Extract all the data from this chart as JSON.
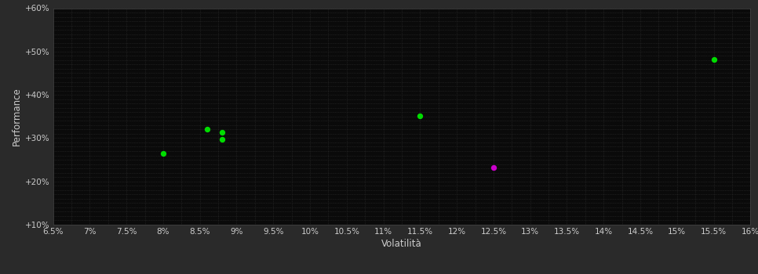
{
  "background_color": "#2a2a2a",
  "plot_bg_color": "#0a0a0a",
  "grid_color": "#3a3a3a",
  "text_color": "#cccccc",
  "xlabel": "Volatilità",
  "ylabel": "Performance",
  "xlim": [
    0.065,
    0.16
  ],
  "ylim": [
    0.1,
    0.6
  ],
  "xticks": [
    0.065,
    0.07,
    0.075,
    0.08,
    0.085,
    0.09,
    0.095,
    0.1,
    0.105,
    0.11,
    0.115,
    0.12,
    0.125,
    0.13,
    0.135,
    0.14,
    0.145,
    0.15,
    0.155,
    0.16
  ],
  "xtick_labels": [
    "6.5%",
    "7%",
    "7.5%",
    "8%",
    "8.5%",
    "9%",
    "9.5%",
    "10%",
    "10.5%",
    "11%",
    "11.5%",
    "12%",
    "12.5%",
    "13%",
    "13.5%",
    "14%",
    "14.5%",
    "15%",
    "15.5%",
    "16%"
  ],
  "yticks": [
    0.1,
    0.2,
    0.3,
    0.4,
    0.5,
    0.6
  ],
  "ytick_labels": [
    "+10%",
    "+20%",
    "+30%",
    "+40%",
    "+50%",
    "+60%"
  ],
  "minor_xtick_step": 0.0025,
  "minor_ytick_step": 0.01,
  "green_points": [
    [
      0.08,
      0.265
    ],
    [
      0.086,
      0.32
    ],
    [
      0.088,
      0.313
    ],
    [
      0.088,
      0.297
    ],
    [
      0.115,
      0.352
    ],
    [
      0.155,
      0.482
    ]
  ],
  "magenta_points": [
    [
      0.125,
      0.232
    ]
  ],
  "green_color": "#00dd00",
  "magenta_color": "#cc00cc",
  "marker_size": 28
}
